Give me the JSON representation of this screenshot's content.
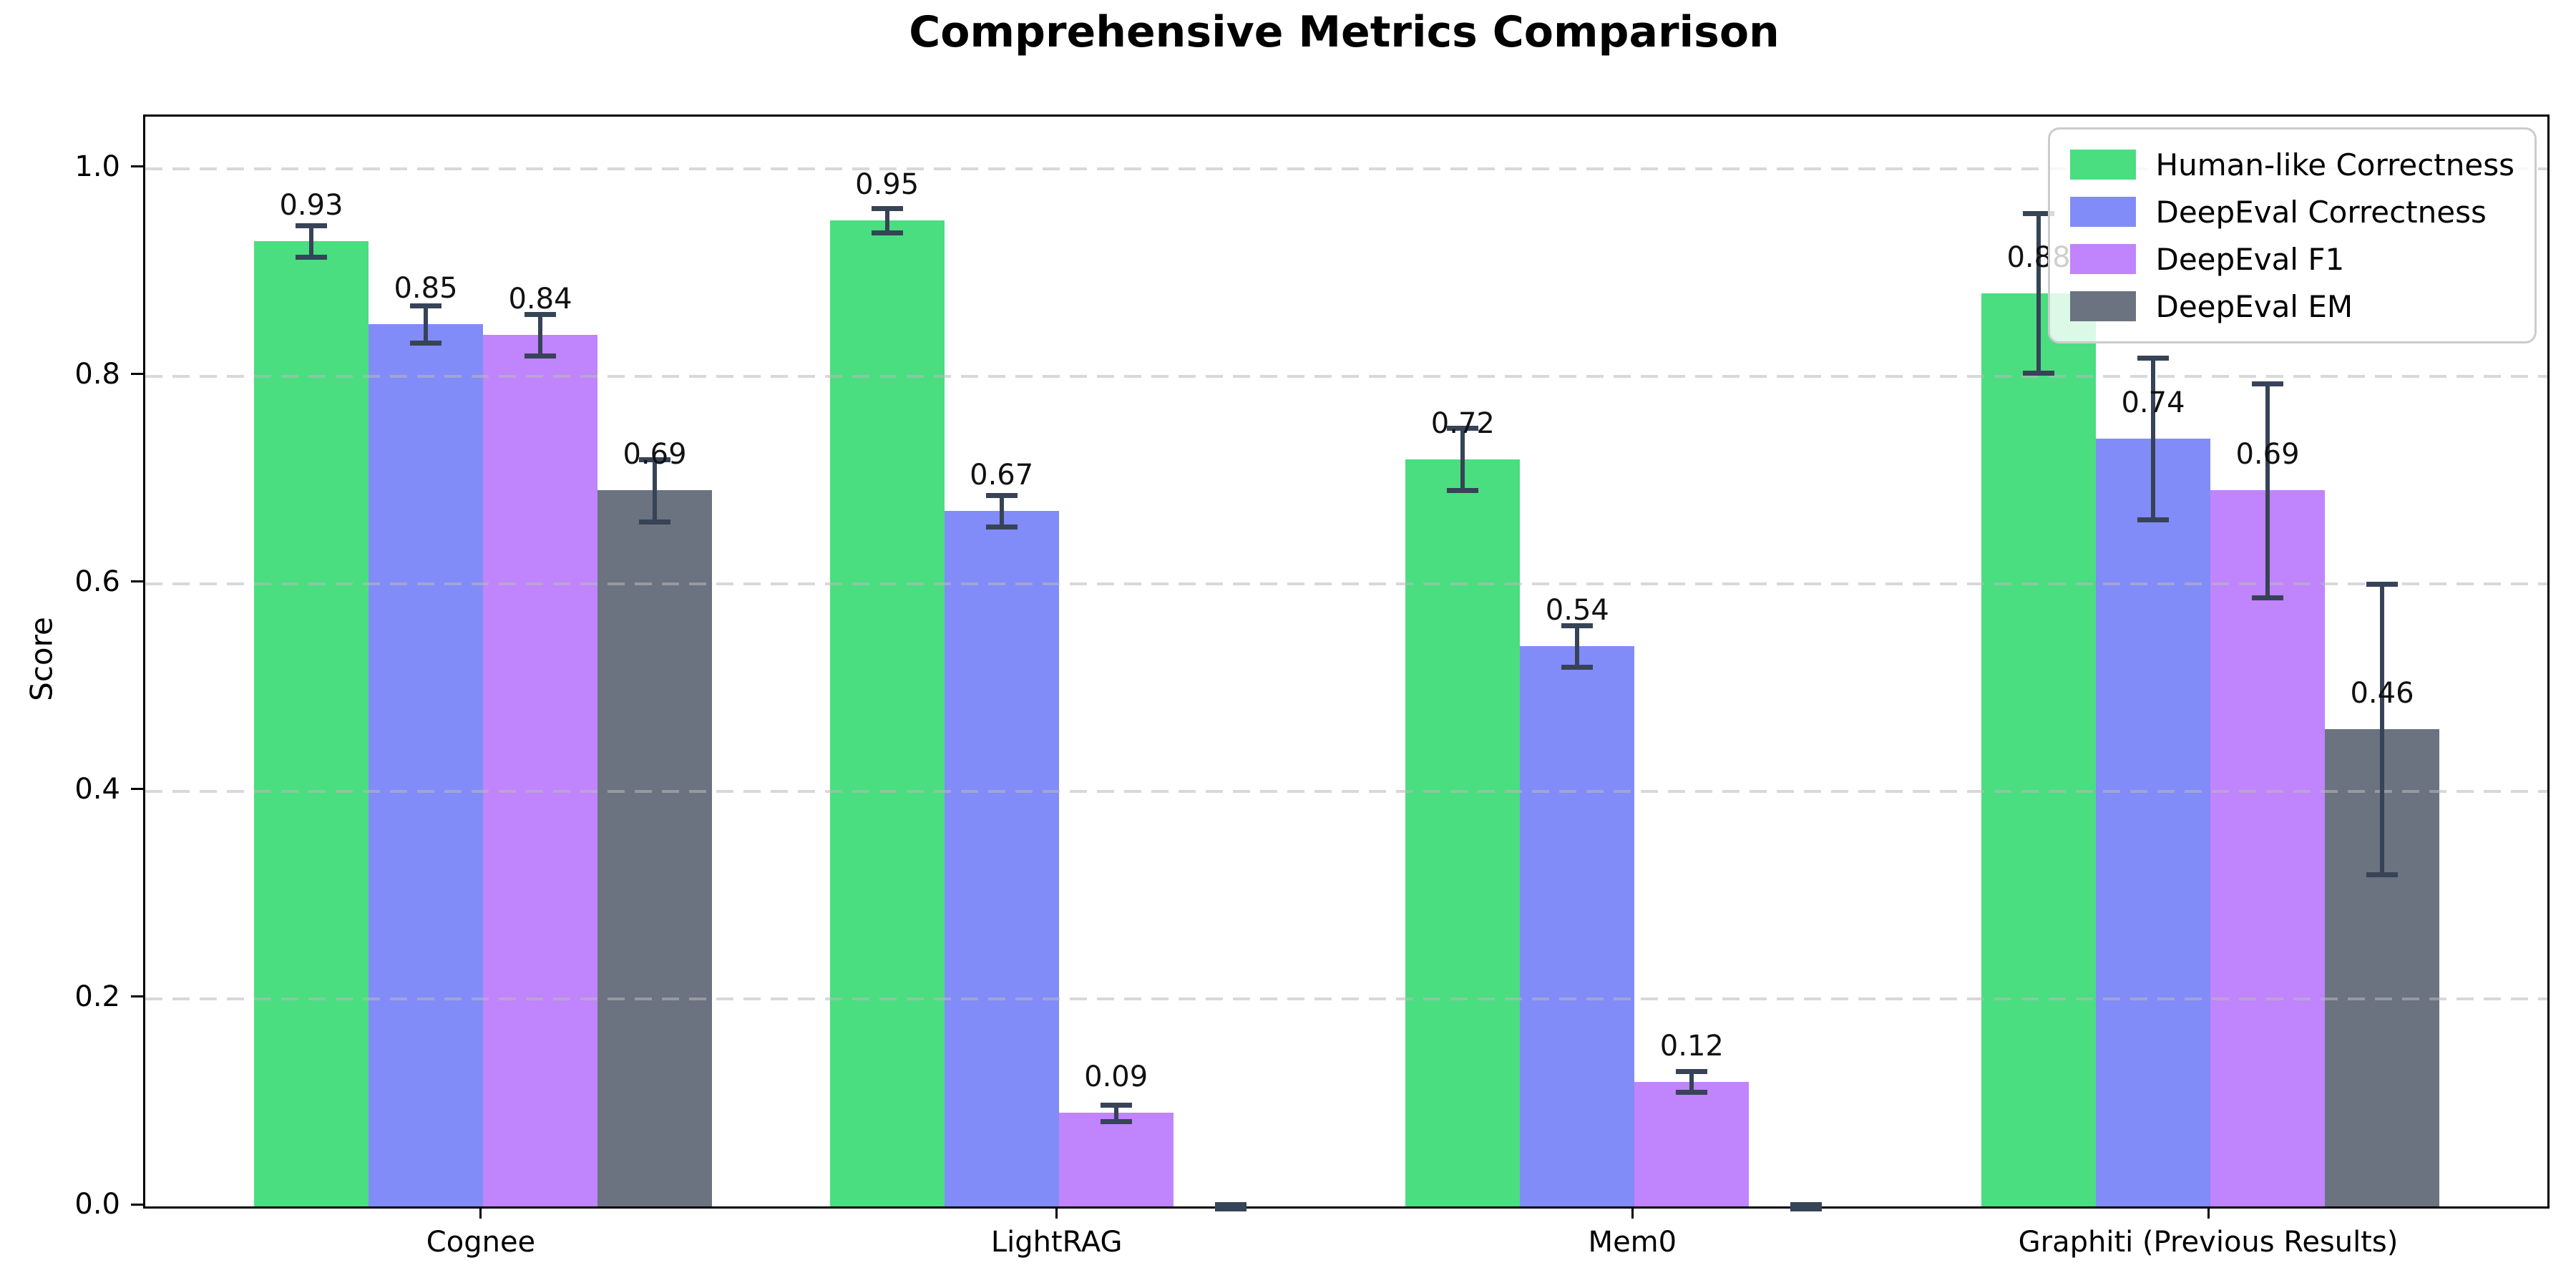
{
  "title": "Comprehensive Metrics Comparison",
  "chart_data": {
    "type": "bar",
    "title": "Comprehensive Metrics Comparison",
    "xlabel": "",
    "ylabel": "Score",
    "categories": [
      "Cognee",
      "LightRAG",
      "Mem0",
      "Graphiti (Previous Results)"
    ],
    "series": [
      {
        "name": "Human-like Correctness",
        "color": "#4ade80",
        "values": [
          0.93,
          0.95,
          0.72,
          0.88
        ],
        "errors": [
          0.015,
          0.012,
          0.03,
          0.077
        ]
      },
      {
        "name": "DeepEval Correctness",
        "color": "#818cf8",
        "values": [
          0.85,
          0.67,
          0.54,
          0.74
        ],
        "errors": [
          0.018,
          0.015,
          0.02,
          0.078
        ]
      },
      {
        "name": "DeepEval F1",
        "color": "#c084fc",
        "values": [
          0.84,
          0.09,
          0.12,
          0.69
        ],
        "errors": [
          0.02,
          0.008,
          0.01,
          0.103
        ]
      },
      {
        "name": "DeepEval EM",
        "color": "#6b7280",
        "values": [
          0.69,
          0.0,
          0.0,
          0.46
        ],
        "errors": [
          0.03,
          0.002,
          0.002,
          0.14
        ]
      }
    ],
    "bar_value_labels": [
      [
        "0.93",
        "0.95",
        "0.72",
        "0.88"
      ],
      [
        "0.85",
        "0.67",
        "0.54",
        "0.74"
      ],
      [
        "0.84",
        "0.09",
        "0.12",
        "0.69"
      ],
      [
        "0.69",
        null,
        null,
        "0.46"
      ]
    ],
    "ylim": [
      0,
      1.05
    ],
    "yticks": [
      0.0,
      0.2,
      0.4,
      0.6,
      0.8,
      1.0
    ],
    "ytick_labels": [
      "0.0",
      "0.2",
      "0.4",
      "0.6",
      "0.8",
      "1.0"
    ],
    "grid": "horizontal-dashed",
    "legend_position": "upper right",
    "hide_zero_value_labels": true
  },
  "colors": {
    "axis": "#000000",
    "grid": "#b9b9b9",
    "errorbar": "#374357",
    "background": "#ffffff",
    "value_label": "#111111"
  }
}
